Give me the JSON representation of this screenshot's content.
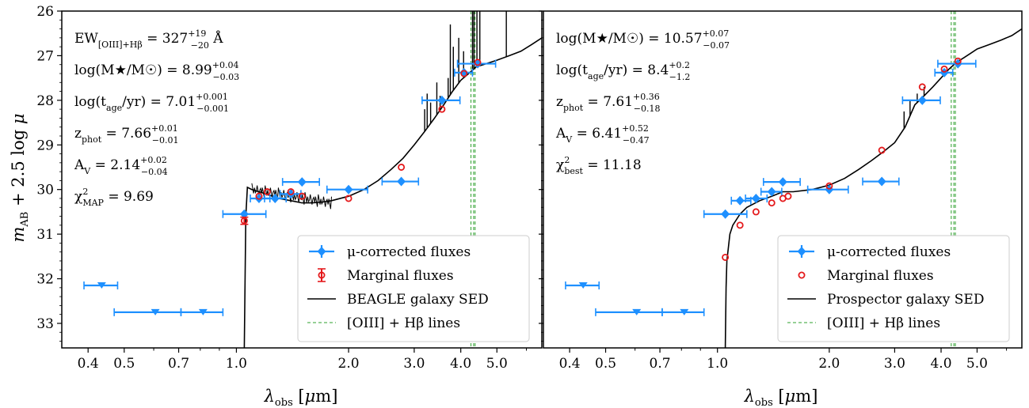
{
  "chart_data": [
    {
      "type": "scatter",
      "panel": "left",
      "xlabel": "λobs [μm]",
      "ylabel": "mAB + 2.5 log μ",
      "xscale": "log",
      "xlim": [
        0.34,
        6.6
      ],
      "ylim": [
        33.55,
        26.0
      ],
      "xticks": [
        "0.4",
        "0.5",
        "0.7",
        "1.0",
        "2.0",
        "3.0",
        "4.0",
        "5.0"
      ],
      "yticks": [
        "26",
        "27",
        "28",
        "29",
        "30",
        "31",
        "32",
        "33"
      ],
      "annotations": [
        {
          "main": "EW",
          "sub": "[OIII]+Hβ",
          "rest": " = 327",
          "sup": "+19",
          "lower": "−20",
          "tail": " Å"
        },
        {
          "main": "log(M★/M☉) = 8.99",
          "sup": "+0.04",
          "lower": "−0.03"
        },
        {
          "main": "log(t",
          "sub": "age",
          "rest": "/yr) = 7.01",
          "sup": "+0.001",
          "lower": "−0.001"
        },
        {
          "main": "z",
          "sub": "phot",
          "rest": " = 7.66",
          "sup": "+0.01",
          "lower": "−0.01"
        },
        {
          "main": "A",
          "sub": "V",
          "rest": " = 2.14",
          "sup": "+0.02",
          "lower": "−0.04"
        },
        {
          "main": "χ",
          "sup2": "2",
          "sub": "MAP",
          "rest": " = 9.69"
        }
      ],
      "legend": [
        "μ-corrected fluxes",
        "Marginal fluxes",
        "BEAGLE galaxy SED",
        "[OIII] + Hβ lines"
      ],
      "legend_position": "lower right",
      "series": [
        {
          "name": "μ-corrected fluxes",
          "color": "#1e90ff",
          "detections": [
            {
              "x": 1.05,
              "xerr": [
                0.92,
                1.2
              ],
              "y": 30.55
            },
            {
              "x": 1.15,
              "xerr": [
                1.09,
                1.23
              ],
              "y": 30.2
            },
            {
              "x": 1.27,
              "xerr": [
                1.19,
                1.36
              ],
              "y": 30.2
            },
            {
              "x": 1.4,
              "xerr": [
                1.31,
                1.49
              ],
              "y": 30.1
            },
            {
              "x": 1.5,
              "xerr": [
                1.33,
                1.67
              ],
              "y": 29.83
            },
            {
              "x": 2.0,
              "xerr": [
                1.75,
                2.25
              ],
              "y": 30.0
            },
            {
              "x": 2.77,
              "xerr": [
                2.46,
                3.08
              ],
              "y": 29.82
            },
            {
              "x": 3.56,
              "xerr": [
                3.15,
                3.98
              ],
              "y": 28.0
            },
            {
              "x": 4.08,
              "xerr": [
                3.85,
                4.3
              ],
              "y": 27.38
            },
            {
              "x": 4.44,
              "xerr": [
                3.92,
                4.96
              ],
              "y": 27.18
            }
          ],
          "upper_limits": [
            {
              "x": 0.435,
              "xerr": [
                0.39,
                0.48
              ],
              "y": 32.15
            },
            {
              "x": 0.606,
              "xerr": [
                0.47,
                0.71
              ],
              "y": 32.75
            },
            {
              "x": 0.814,
              "xerr": [
                0.71,
                0.92
              ],
              "y": 32.75
            }
          ]
        },
        {
          "name": "Marginal fluxes",
          "color": "#e41a1c",
          "points": [
            {
              "x": 1.05,
              "y": 30.7,
              "yerr": 0.08
            },
            {
              "x": 1.15,
              "y": 30.15
            },
            {
              "x": 1.21,
              "y": 30.05
            },
            {
              "x": 1.4,
              "y": 30.05
            },
            {
              "x": 1.5,
              "y": 30.15
            },
            {
              "x": 2.0,
              "y": 30.2
            },
            {
              "x": 2.77,
              "y": 29.5
            },
            {
              "x": 3.56,
              "y": 28.2
            },
            {
              "x": 4.08,
              "y": 27.4
            },
            {
              "x": 4.44,
              "y": 27.15
            }
          ]
        },
        {
          "name": "BEAGLE galaxy SED",
          "color": "#000000",
          "x": [
            1.05,
            1.06,
            1.07,
            1.1,
            1.15,
            1.2,
            1.3,
            1.4,
            1.5,
            1.6,
            1.7,
            1.8,
            2.0,
            2.2,
            2.4,
            2.6,
            2.8,
            3.0,
            3.2,
            3.4,
            3.6,
            3.8,
            4.0,
            4.2,
            4.4,
            4.6,
            4.8,
            5.0,
            5.4,
            5.8,
            6.2,
            6.6
          ],
          "y": [
            33.55,
            30.6,
            29.95,
            30.0,
            30.05,
            30.1,
            30.2,
            30.25,
            30.3,
            30.3,
            30.28,
            30.25,
            30.15,
            30.0,
            29.8,
            29.55,
            29.3,
            29.0,
            28.7,
            28.4,
            28.1,
            27.8,
            27.55,
            27.4,
            27.25,
            27.2,
            27.15,
            27.1,
            27.0,
            26.9,
            26.75,
            26.6
          ],
          "emission_lines": [
            {
              "x": 3.2,
              "y": 28.2
            },
            {
              "x": 3.25,
              "y": 27.85
            },
            {
              "x": 3.32,
              "y": 28.05
            },
            {
              "x": 3.45,
              "y": 27.6
            },
            {
              "x": 3.52,
              "y": 27.9
            },
            {
              "x": 3.7,
              "y": 27.5
            },
            {
              "x": 3.75,
              "y": 26.3
            },
            {
              "x": 3.82,
              "y": 26.8
            },
            {
              "x": 3.95,
              "y": 26.6
            },
            {
              "x": 4.07,
              "y": 26.9
            },
            {
              "x": 4.3,
              "y": 26.0
            },
            {
              "x": 4.34,
              "y": 26.0
            },
            {
              "x": 4.42,
              "y": 26.0
            },
            {
              "x": 4.5,
              "y": 26.0
            },
            {
              "x": 5.3,
              "y": 26.0
            }
          ]
        },
        {
          "name": "[OIII] + Hβ lines",
          "color": "#2ca02c",
          "x": [
            4.26,
            4.33,
            4.37
          ]
        }
      ]
    },
    {
      "type": "scatter",
      "panel": "right",
      "xlabel": "λobs [μm]",
      "xscale": "log",
      "xlim": [
        0.34,
        6.6
      ],
      "ylim": [
        33.55,
        26.0
      ],
      "xticks": [
        "0.4",
        "0.5",
        "0.7",
        "1.0",
        "2.0",
        "3.0",
        "4.0",
        "5.0"
      ],
      "annotations": [
        {
          "main": "log(M★/M☉) = 10.57",
          "sup": "+0.07",
          "lower": "−0.07"
        },
        {
          "main": "log(t",
          "sub": "age",
          "rest": "/yr) = 8.4",
          "sup": "+0.2",
          "lower": "−1.2"
        },
        {
          "main": "z",
          "sub": "phot",
          "rest": " = 7.61",
          "sup": "+0.36",
          "lower": "−0.18"
        },
        {
          "main": "A",
          "sub": "V",
          "rest": " = 6.41",
          "sup": "+0.52",
          "lower": "−0.47"
        },
        {
          "main": "χ",
          "sup2": "2",
          "sub": "best",
          "rest": " = 11.18"
        }
      ],
      "legend": [
        "μ-corrected fluxes",
        "Marginal fluxes",
        "Prospector galaxy SED",
        "[OIII] + Hβ lines"
      ],
      "legend_position": "lower right",
      "series": [
        {
          "name": "μ-corrected fluxes",
          "color": "#1e90ff",
          "detections": [
            {
              "x": 1.05,
              "xerr": [
                0.92,
                1.2
              ],
              "y": 30.55
            },
            {
              "x": 1.15,
              "xerr": [
                1.09,
                1.23
              ],
              "y": 30.25
            },
            {
              "x": 1.27,
              "xerr": [
                1.19,
                1.36
              ],
              "y": 30.2
            },
            {
              "x": 1.4,
              "xerr": [
                1.31,
                1.49
              ],
              "y": 30.05
            },
            {
              "x": 1.5,
              "xerr": [
                1.33,
                1.67
              ],
              "y": 29.83
            },
            {
              "x": 2.0,
              "xerr": [
                1.75,
                2.25
              ],
              "y": 30.0
            },
            {
              "x": 2.77,
              "xerr": [
                2.46,
                3.08
              ],
              "y": 29.82
            },
            {
              "x": 3.56,
              "xerr": [
                3.15,
                3.98
              ],
              "y": 28.0
            },
            {
              "x": 4.08,
              "xerr": [
                3.85,
                4.3
              ],
              "y": 27.38
            },
            {
              "x": 4.44,
              "xerr": [
                3.92,
                4.96
              ],
              "y": 27.18
            }
          ],
          "upper_limits": [
            {
              "x": 0.435,
              "xerr": [
                0.39,
                0.48
              ],
              "y": 32.15
            },
            {
              "x": 0.606,
              "xerr": [
                0.47,
                0.71
              ],
              "y": 32.75
            },
            {
              "x": 0.814,
              "xerr": [
                0.71,
                0.92
              ],
              "y": 32.75
            }
          ]
        },
        {
          "name": "Marginal fluxes",
          "color": "#e41a1c",
          "points": [
            {
              "x": 1.05,
              "y": 31.52
            },
            {
              "x": 1.15,
              "y": 30.8
            },
            {
              "x": 1.27,
              "y": 30.5
            },
            {
              "x": 1.4,
              "y": 30.3
            },
            {
              "x": 1.5,
              "y": 30.2
            },
            {
              "x": 1.55,
              "y": 30.15
            },
            {
              "x": 2.0,
              "y": 29.92
            },
            {
              "x": 2.77,
              "y": 29.12
            },
            {
              "x": 3.56,
              "y": 27.7
            },
            {
              "x": 4.08,
              "y": 27.3
            },
            {
              "x": 4.44,
              "y": 27.12
            }
          ]
        },
        {
          "name": "Prospector galaxy SED",
          "color": "#000000",
          "x": [
            1.05,
            1.055,
            1.06,
            1.08,
            1.1,
            1.15,
            1.2,
            1.3,
            1.4,
            1.5,
            1.6,
            1.8,
            2.0,
            2.2,
            2.4,
            2.6,
            2.8,
            3.0,
            3.2,
            3.4,
            3.6,
            3.8,
            4.0,
            4.2,
            4.4,
            4.6,
            4.8,
            5.0,
            5.4,
            5.8,
            6.2,
            6.6
          ],
          "y": [
            33.55,
            32.2,
            31.6,
            31.0,
            30.8,
            30.55,
            30.4,
            30.25,
            30.15,
            30.05,
            30.05,
            30.0,
            29.9,
            29.75,
            29.55,
            29.35,
            29.15,
            28.95,
            28.6,
            28.1,
            27.9,
            27.7,
            27.5,
            27.3,
            27.15,
            27.05,
            26.95,
            26.85,
            26.75,
            26.65,
            26.55,
            26.4
          ],
          "emission_lines": [
            {
              "x": 3.18,
              "y": 28.25
            },
            {
              "x": 3.3,
              "y": 28.0
            },
            {
              "x": 3.45,
              "y": 27.85
            },
            {
              "x": 3.6,
              "y": 27.7
            },
            {
              "x": 4.25,
              "y": 27.25
            }
          ]
        },
        {
          "name": "[OIII] + Hβ lines",
          "color": "#2ca02c",
          "x": [
            4.26,
            4.33,
            4.37
          ]
        }
      ]
    }
  ]
}
